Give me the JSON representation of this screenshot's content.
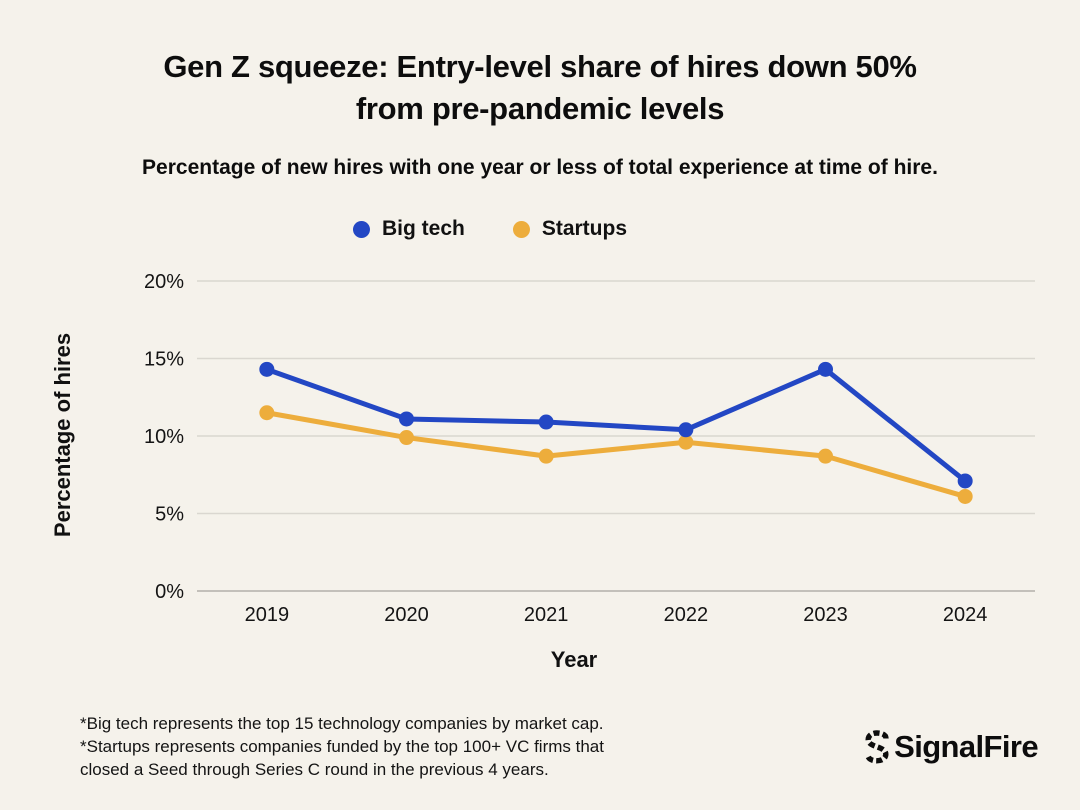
{
  "header": {
    "title_line1": "Gen Z squeeze: Entry-level share of hires down 50%",
    "title_line2": "from pre-pandemic levels",
    "subtitle": "Percentage of new hires with one year or less of total experience at time of hire."
  },
  "legend": {
    "items": [
      {
        "label": "Big tech",
        "color": "#2347c4"
      },
      {
        "label": "Startups",
        "color": "#edad3c"
      }
    ]
  },
  "chart_data": {
    "type": "line",
    "categories": [
      "2019",
      "2020",
      "2021",
      "2022",
      "2023",
      "2024"
    ],
    "series": [
      {
        "name": "Big tech",
        "color": "#2347c4",
        "values": [
          14.3,
          11.1,
          10.9,
          10.4,
          14.3,
          7.1
        ]
      },
      {
        "name": "Startups",
        "color": "#edad3c",
        "values": [
          11.5,
          9.9,
          8.7,
          9.6,
          8.7,
          6.1
        ]
      }
    ],
    "xlabel": "Year",
    "ylabel": "Percentage of hires",
    "ylim": [
      0,
      20
    ],
    "yticks": [
      0,
      5,
      10,
      15,
      20
    ],
    "ytick_labels": [
      "0%",
      "5%",
      "10%",
      "15%",
      "20%"
    ],
    "grid": true,
    "legend_position": "top-center"
  },
  "footnote": {
    "lines": [
      "*Big tech represents the top 15 technology companies by market cap.",
      "*Startups represents companies funded by the top 100+ VC firms that",
      "closed a Seed through Series C round in the previous 4 years."
    ]
  },
  "branding": {
    "logo_text": "SignalFire",
    "logo_mark": "signalfire-mark"
  },
  "colors": {
    "background": "#f5f2eb",
    "text": "#111111",
    "gridline": "#dad7d0",
    "axis_line": "#c3c0ba",
    "big_tech": "#2347c4",
    "startups": "#edad3c"
  }
}
